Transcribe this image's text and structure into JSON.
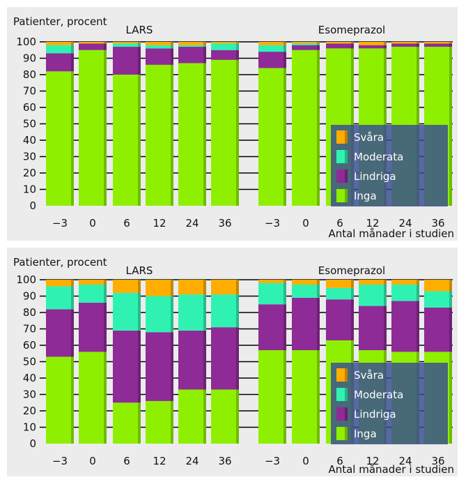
{
  "colors": {
    "Inga": "#8ef000",
    "Lindriga": "#8e2b97",
    "Moderata": "#2ff2b2",
    "Svara": "#ffad00",
    "panel_bg": "#ececec",
    "legend_bg": "#384a92"
  },
  "chart_data": [
    {
      "type": "bar",
      "stacked": true,
      "ylabel": "Patienter, procent",
      "xlabel": "Antal månader i studien",
      "ylim": [
        0,
        100
      ],
      "yticks": [
        "0",
        "10",
        "20",
        "30",
        "40",
        "50",
        "60",
        "70",
        "80",
        "90",
        "100"
      ],
      "groups": [
        {
          "label": "LARS",
          "categories": [
            "−3",
            "0",
            "6",
            "12",
            "24",
            "36"
          ]
        },
        {
          "label": "Esomeprazol",
          "categories": [
            "−3",
            "0",
            "6",
            "12",
            "24",
            "36"
          ]
        }
      ],
      "legend": [
        "Svåra",
        "Moderata",
        "Lindriga",
        "Inga"
      ],
      "series": [
        {
          "name": "Inga",
          "values": [
            82,
            95,
            80,
            86,
            87,
            89,
            84,
            95,
            96,
            96,
            97,
            97
          ]
        },
        {
          "name": "Lindriga",
          "values": [
            11,
            4,
            17,
            10,
            10,
            6,
            10,
            3,
            3,
            2,
            2,
            2
          ]
        },
        {
          "name": "Moderata",
          "values": [
            5,
            0,
            2,
            2,
            1,
            4,
            4,
            1,
            0,
            0,
            0,
            0
          ]
        },
        {
          "name": "Svåra",
          "values": [
            2,
            1,
            1,
            2,
            2,
            1,
            2,
            1,
            1,
            2,
            1,
            1
          ]
        }
      ]
    },
    {
      "type": "bar",
      "stacked": true,
      "ylabel": "Patienter, procent",
      "xlabel": "Antal månader i studien",
      "ylim": [
        0,
        100
      ],
      "yticks": [
        "0",
        "10",
        "20",
        "30",
        "40",
        "50",
        "60",
        "70",
        "80",
        "90",
        "100"
      ],
      "groups": [
        {
          "label": "LARS",
          "categories": [
            "−3",
            "0",
            "6",
            "12",
            "24",
            "36"
          ]
        },
        {
          "label": "Esomeprazol",
          "categories": [
            "−3",
            "0",
            "6",
            "12",
            "24",
            "36"
          ]
        }
      ],
      "legend": [
        "Svåra",
        "Moderata",
        "Lindriga",
        "Inga"
      ],
      "series": [
        {
          "name": "Inga",
          "values": [
            53,
            56,
            25,
            26,
            33,
            33,
            57,
            57,
            63,
            57,
            56,
            56
          ]
        },
        {
          "name": "Lindriga",
          "values": [
            29,
            30,
            44,
            42,
            36,
            38,
            28,
            32,
            25,
            27,
            31,
            27
          ]
        },
        {
          "name": "Moderata",
          "values": [
            14,
            11,
            23,
            22,
            22,
            20,
            13,
            8,
            7,
            13,
            10,
            10
          ]
        },
        {
          "name": "Svåra",
          "values": [
            4,
            3,
            8,
            10,
            9,
            9,
            2,
            3,
            5,
            3,
            3,
            7
          ]
        }
      ]
    }
  ]
}
